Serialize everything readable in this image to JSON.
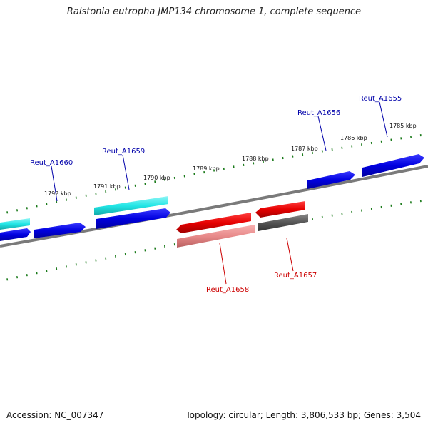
{
  "title": "Ralstonia eutropha JMP134 chromosome 1, complete sequence",
  "footer": {
    "accession": "Accession: NC_007347",
    "summary": "Topology: circular; Length: 3,806,533 bp; Genes: 3,504"
  },
  "scale": {
    "ticks": [
      "1792 kbp",
      "1791 kbp",
      "1790 kbp",
      "1789 kbp",
      "1788 kbp",
      "1787 kbp",
      "1786 kbp",
      "1785 kbp"
    ]
  },
  "genes": {
    "reut_a1660": {
      "label": "Reut_A1660",
      "color": "#0000aa"
    },
    "reut_a1659": {
      "label": "Reut_A1659",
      "color": "#0000aa"
    },
    "reut_a1656": {
      "label": "Reut_A1656",
      "color": "#0000aa"
    },
    "reut_a1655": {
      "label": "Reut_A1655",
      "color": "#0000aa"
    },
    "reut_a1658": {
      "label": "Reut_A1658",
      "color": "#cc0000"
    },
    "reut_a1657": {
      "label": "Reut_A1657",
      "color": "#cc0000"
    }
  },
  "colors": {
    "forward_cds": "#0000e6",
    "forward_gene": "#22e6e6",
    "reverse_cds": "#e60000",
    "reverse_gene": "#e88a8a",
    "pseudo": "#555555",
    "backbone": "#7a7a7a",
    "tick": "#1a7a1a"
  }
}
